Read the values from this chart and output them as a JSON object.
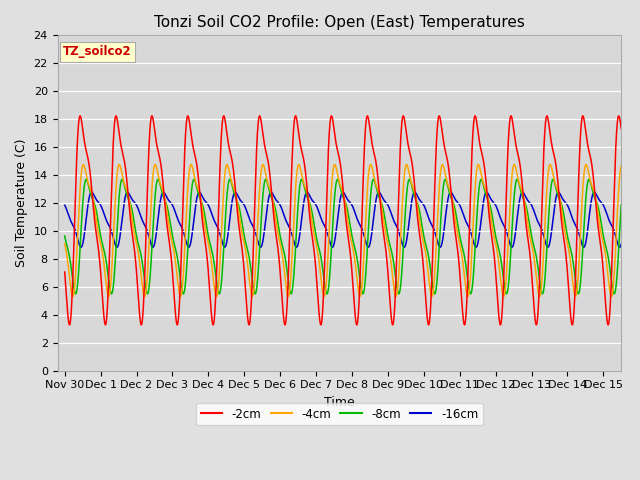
{
  "title": "Tonzi Soil CO2 Profile: Open (East) Temperatures",
  "xlabel": "Time",
  "ylabel": "Soil Temperature (C)",
  "legend_label": "TZ_soilco2",
  "series_labels": [
    "-2cm",
    "-4cm",
    "-8cm",
    "-16cm"
  ],
  "series_colors": [
    "#ff0000",
    "#ffa500",
    "#00bb00",
    "#0000cc"
  ],
  "xlim": [
    -0.2,
    15.5
  ],
  "ylim": [
    0,
    24
  ],
  "yticks": [
    0,
    2,
    4,
    6,
    8,
    10,
    12,
    14,
    16,
    18,
    20,
    22,
    24
  ],
  "xtick_labels": [
    "Nov 30",
    "Dec 1",
    "Dec 2",
    "Dec 3",
    "Dec 4",
    "Dec 5",
    "Dec 6",
    "Dec 7",
    "Dec 8",
    "Dec 9",
    "Dec 10",
    "Dec 11",
    "Dec 12",
    "Dec 13",
    "Dec 14",
    "Dec 15"
  ],
  "xtick_positions": [
    0,
    1,
    2,
    3,
    4,
    5,
    6,
    7,
    8,
    9,
    10,
    11,
    12,
    13,
    14,
    15
  ],
  "fig_bg_color": "#e0e0e0",
  "plot_bg_color": "#d8d8d8",
  "grid_color": "#ffffff",
  "title_fontsize": 11,
  "axis_label_fontsize": 9,
  "tick_fontsize": 8,
  "legend_box_facecolor": "#ffffcc",
  "legend_box_edgecolor": "#aaaaaa",
  "legend_text_color": "#cc0000"
}
